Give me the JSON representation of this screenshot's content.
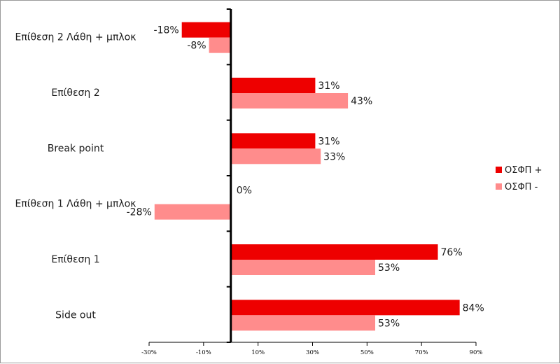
{
  "chart_data": {
    "type": "bar",
    "orientation": "horizontal",
    "categories": [
      "Επίθεση 2 Λάθη + μπλοκ",
      "Επίθεση 2",
      "Break point",
      "Επίθεση 1 Λάθη + μπλοκ",
      "Επίθεση 1",
      "Side out"
    ],
    "series": [
      {
        "name": "ΟΣΦΠ +",
        "color": "#ee0000",
        "values": [
          -18,
          31,
          31,
          0,
          76,
          84
        ],
        "labels": [
          "-18%",
          "31%",
          "31%",
          "0%",
          "76%",
          "84%"
        ]
      },
      {
        "name": "ΟΣΦΠ -",
        "color": "#ff8c8c",
        "values": [
          -8,
          43,
          33,
          -28,
          53,
          53
        ],
        "labels": [
          "-8%",
          "43%",
          "33%",
          "-28%",
          "53%",
          "53%"
        ]
      }
    ],
    "xlim": [
      -30,
      90
    ],
    "xticks": [
      -30,
      -10,
      10,
      30,
      50,
      70,
      90
    ],
    "xtick_labels": [
      "-30%",
      "-10%",
      "10%",
      "30%",
      "50%",
      "70%",
      "90%"
    ],
    "title": "",
    "xlabel": "",
    "ylabel": "",
    "legend_position": "right",
    "grid": false
  }
}
